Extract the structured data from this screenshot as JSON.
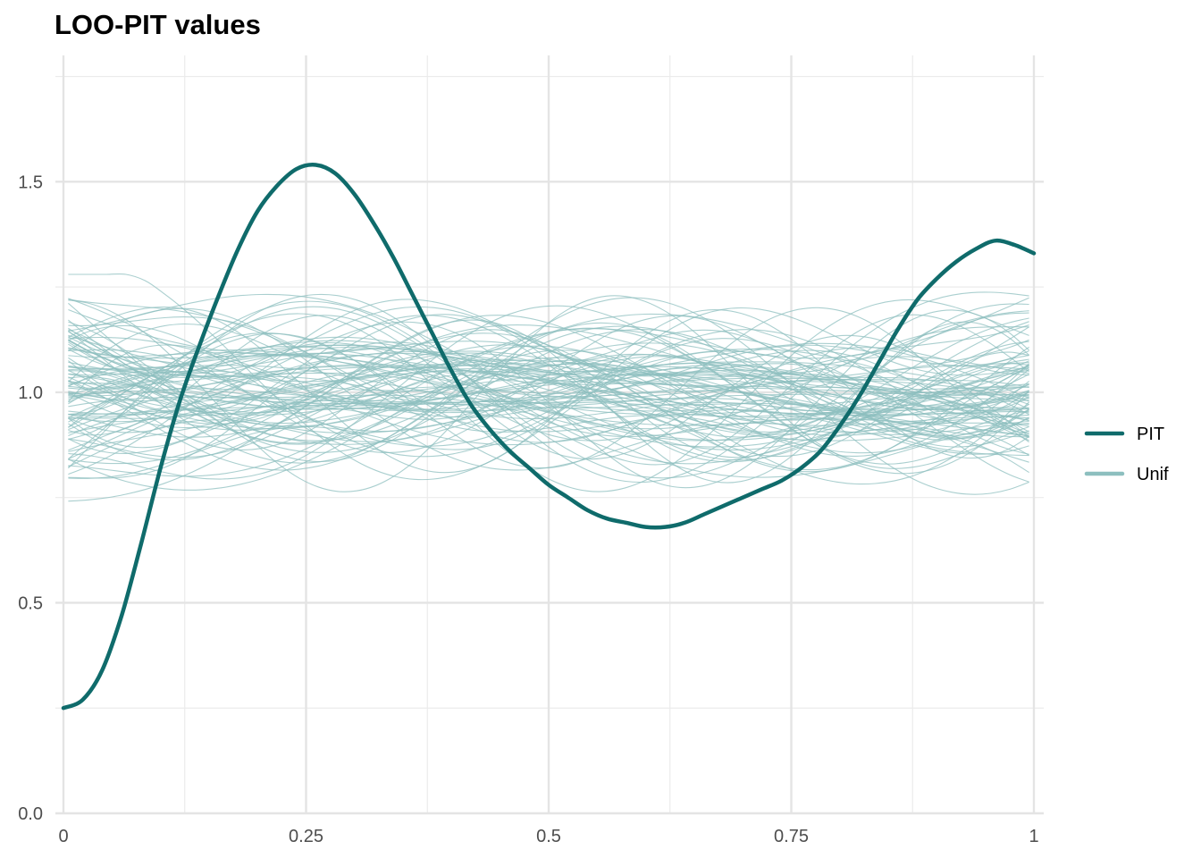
{
  "chart_data": {
    "type": "line",
    "title": "LOO-PIT values",
    "xlabel": "",
    "ylabel": "",
    "xlim": [
      0,
      1
    ],
    "ylim": [
      0,
      1.8
    ],
    "x_ticks": [
      {
        "value": 0,
        "label": "0"
      },
      {
        "value": 0.25,
        "label": "0.25"
      },
      {
        "value": 0.5,
        "label": "0.5"
      },
      {
        "value": 0.75,
        "label": "0.75"
      },
      {
        "value": 1,
        "label": "1"
      }
    ],
    "y_ticks": [
      {
        "value": 0,
        "label": "0.0"
      },
      {
        "value": 0.5,
        "label": "0.5"
      },
      {
        "value": 1,
        "label": "1.0"
      },
      {
        "value": 1.5,
        "label": "1.5"
      }
    ],
    "grid": true,
    "legend_position": "right",
    "series": [
      {
        "name": "PIT",
        "color": "#0f6b6b",
        "x": [
          0,
          0.02,
          0.04,
          0.06,
          0.08,
          0.1,
          0.12,
          0.14,
          0.16,
          0.18,
          0.2,
          0.22,
          0.24,
          0.26,
          0.28,
          0.3,
          0.32,
          0.34,
          0.36,
          0.38,
          0.4,
          0.42,
          0.44,
          0.46,
          0.48,
          0.5,
          0.52,
          0.54,
          0.56,
          0.58,
          0.6,
          0.62,
          0.64,
          0.66,
          0.68,
          0.7,
          0.72,
          0.74,
          0.76,
          0.78,
          0.8,
          0.82,
          0.84,
          0.86,
          0.88,
          0.9,
          0.92,
          0.94,
          0.96,
          0.98,
          1.0
        ],
        "values": [
          0.25,
          0.27,
          0.34,
          0.47,
          0.64,
          0.82,
          0.98,
          1.11,
          1.23,
          1.34,
          1.43,
          1.49,
          1.53,
          1.54,
          1.52,
          1.47,
          1.4,
          1.32,
          1.23,
          1.14,
          1.05,
          0.97,
          0.91,
          0.86,
          0.82,
          0.78,
          0.75,
          0.72,
          0.7,
          0.69,
          0.68,
          0.68,
          0.69,
          0.71,
          0.73,
          0.75,
          0.77,
          0.79,
          0.82,
          0.86,
          0.92,
          0.99,
          1.07,
          1.15,
          1.22,
          1.27,
          1.31,
          1.34,
          1.36,
          1.35,
          1.33
        ]
      },
      {
        "name": "Unif",
        "color": "#8dbfbf",
        "samples": 100,
        "description_range": [
          0.7,
          1.28
        ]
      }
    ]
  }
}
